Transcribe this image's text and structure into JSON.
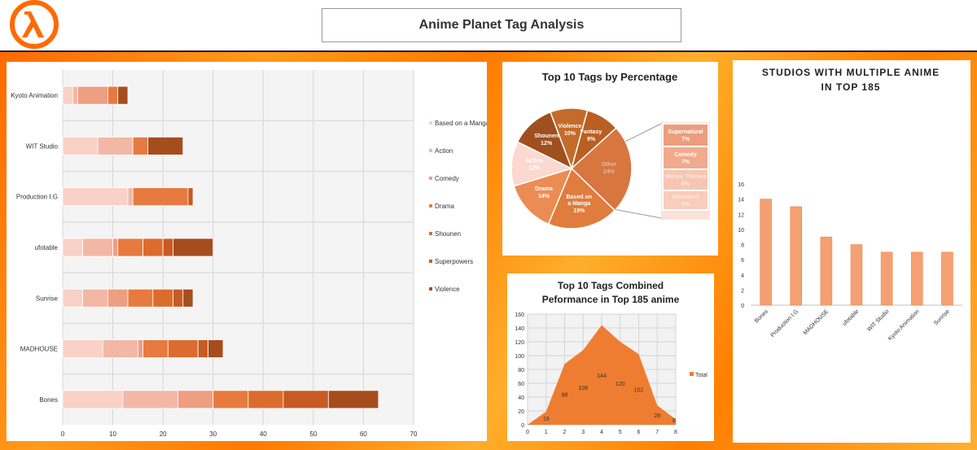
{
  "page_title": "Anime Planet Tag Analysis",
  "logo_icon": "lambda-logo-icon",
  "colors": {
    "brand": "#ff6a00",
    "bar_series": [
      "#f9d1c6",
      "#f3b7a6",
      "#ee9e83",
      "#e77a3f",
      "#dc6c2e",
      "#c85a23",
      "#a64d1d"
    ],
    "pie": [
      "#c46b2b",
      "#b95f22",
      "#d8763f",
      "#e07c3c",
      "#ec8c55",
      "#fbd9d0",
      "#a04f1e"
    ],
    "line_fill": "#ee7d31"
  },
  "chart_data": [
    {
      "type": "bar",
      "orientation": "horizontal",
      "stacked": true,
      "categories": [
        "Kyoto Animation",
        "WIT Studio",
        "Production I.G",
        "ufotable",
        "Sunrise",
        "MADHOUSE",
        "Bones"
      ],
      "series": [
        {
          "name": "Based on a Manga",
          "values": [
            2,
            7,
            13,
            4,
            4,
            8,
            12
          ]
        },
        {
          "name": "Action",
          "values": [
            1,
            7,
            1,
            6,
            5,
            7,
            11
          ]
        },
        {
          "name": "Comedy",
          "values": [
            6,
            0,
            0,
            1,
            4,
            1,
            7
          ]
        },
        {
          "name": "Drama",
          "values": [
            2,
            3,
            11,
            5,
            5,
            5,
            7
          ]
        },
        {
          "name": "Shounen",
          "values": [
            0,
            0,
            0,
            4,
            4,
            6,
            7
          ]
        },
        {
          "name": "Superpowers",
          "values": [
            0,
            0,
            1,
            2,
            2,
            2,
            9
          ]
        },
        {
          "name": "Violence",
          "values": [
            2,
            7,
            0,
            8,
            2,
            3,
            10
          ]
        }
      ],
      "xlim": [
        0,
        70
      ],
      "x_ticks": [
        0,
        10,
        20,
        30,
        40,
        50,
        60,
        70
      ],
      "legend": "right"
    },
    {
      "type": "pie",
      "title": "Top 10 Tags by Percentage",
      "slices": [
        {
          "label": "Violence",
          "value": 10,
          "text": "10%"
        },
        {
          "label": "Fantasy",
          "value": 9,
          "text": "9%"
        },
        {
          "label": "Other",
          "value": 24,
          "text": "24%"
        },
        {
          "label": "Based on a Manga",
          "value": 19,
          "text": "19%"
        },
        {
          "label": "Drama",
          "value": 14,
          "text": "14%"
        },
        {
          "label": "Action",
          "value": 12,
          "text": "12%"
        },
        {
          "label": "Shounen",
          "value": 12,
          "text": "12%"
        }
      ],
      "breakout": [
        {
          "label": "Supernatural",
          "text": "7%"
        },
        {
          "label": "Comedy",
          "text": "7%"
        },
        {
          "label": "Mature Themes",
          "text": "6%"
        },
        {
          "label": "Adventure",
          "text": "5%"
        }
      ]
    },
    {
      "type": "area",
      "title_lines": [
        "Top 10 Tags Combined",
        "Peformance in Top 185 anime"
      ],
      "x": [
        0,
        1,
        2,
        3,
        4,
        5,
        6,
        7,
        8
      ],
      "values": [
        0,
        19,
        88,
        108,
        144,
        120,
        102,
        28,
        8
      ],
      "labels": [
        "",
        "19",
        "88",
        "108",
        "144",
        "120",
        "102",
        "28",
        "8"
      ],
      "ylim": [
        0,
        160
      ],
      "y_ticks": [
        0,
        20,
        40,
        60,
        80,
        100,
        120,
        140,
        160
      ],
      "x_ticks": [
        0,
        1,
        2,
        3,
        4,
        5,
        6,
        7,
        8
      ],
      "legend": "Total"
    },
    {
      "type": "bar",
      "title_lines": [
        "STUDIOS WITH MULTIPLE ANIME",
        "IN TOP 185"
      ],
      "categories": [
        "Bones",
        "Production I.G",
        "MADHOUSE",
        "ufotable",
        "WIT Studio",
        "Kyoto Animation",
        "Sunrise"
      ],
      "values": [
        14,
        13,
        9,
        8,
        7,
        7,
        7
      ],
      "ylim": [
        0,
        16
      ],
      "y_ticks": [
        0,
        2,
        4,
        6,
        8,
        10,
        12,
        14,
        16
      ]
    }
  ]
}
